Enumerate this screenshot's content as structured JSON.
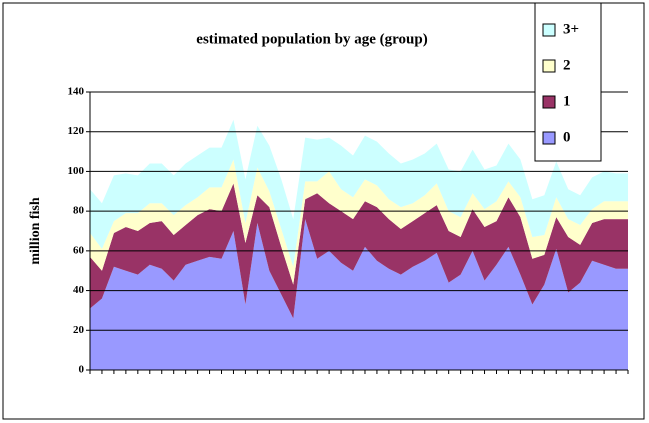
{
  "chart_data": {
    "type": "stacked_area",
    "title": "estimated population by age (group)",
    "y_label": "million fish",
    "categories": [
      null,
      null,
      null,
      null,
      null,
      null,
      null,
      null,
      null,
      null,
      null,
      null,
      null,
      null,
      null,
      null,
      null,
      null,
      null,
      null,
      null,
      null,
      null,
      null,
      null,
      null,
      null,
      null,
      null,
      null,
      null,
      null,
      null,
      null,
      null,
      null,
      null,
      null,
      null,
      null,
      null,
      null,
      null,
      null,
      null,
      null
    ],
    "series": [
      {
        "name": "0",
        "color": "#9999ff",
        "values": [
          31,
          36,
          52,
          50,
          48,
          53,
          51,
          45,
          53,
          55,
          57,
          56,
          70,
          33,
          74,
          50,
          38,
          26,
          76,
          56,
          60,
          54,
          50,
          62,
          55,
          51,
          48,
          52,
          55,
          59,
          44,
          48,
          60,
          45,
          53,
          62,
          48,
          33,
          43,
          61,
          39,
          44,
          55,
          53,
          51,
          51
        ]
      },
      {
        "name": "1",
        "color": "#993366",
        "values": [
          26,
          14,
          17,
          22,
          22,
          21,
          24,
          23,
          20,
          23,
          24,
          24,
          24,
          31,
          14,
          32,
          24,
          17,
          10,
          33,
          24,
          26,
          26,
          23,
          27,
          25,
          23,
          23,
          24,
          24,
          26,
          19,
          21,
          27,
          22,
          25,
          29,
          23,
          15,
          16,
          28,
          19,
          19,
          23,
          25,
          25
        ]
      },
      {
        "name": "2",
        "color": "#ffffcc",
        "values": [
          12,
          11,
          6,
          7,
          9,
          10,
          9,
          10,
          10,
          9,
          11,
          12,
          12,
          10,
          14,
          8,
          9,
          9,
          9,
          6,
          16,
          11,
          11,
          11,
          11,
          10,
          11,
          9,
          9,
          11,
          10,
          10,
          8,
          9,
          10,
          8,
          10,
          11,
          10,
          10,
          9,
          10,
          7,
          9,
          9,
          9
        ]
      },
      {
        "name": "3+",
        "color": "#ccffff",
        "values": [
          22,
          23,
          23,
          20,
          19,
          20,
          20,
          20,
          21,
          21,
          20,
          20,
          20,
          22,
          21,
          23,
          25,
          24,
          22,
          21,
          17,
          22,
          21,
          22,
          22,
          23,
          22,
          22,
          21,
          20,
          21,
          23,
          22,
          20,
          18,
          19,
          19,
          19,
          20,
          18,
          15,
          15,
          16,
          15,
          14,
          14
        ]
      }
    ],
    "ylim": [
      0,
      140
    ],
    "yticks": [
      0,
      20,
      40,
      60,
      80,
      100,
      120,
      140
    ],
    "grid": true,
    "legend": "top-right"
  }
}
